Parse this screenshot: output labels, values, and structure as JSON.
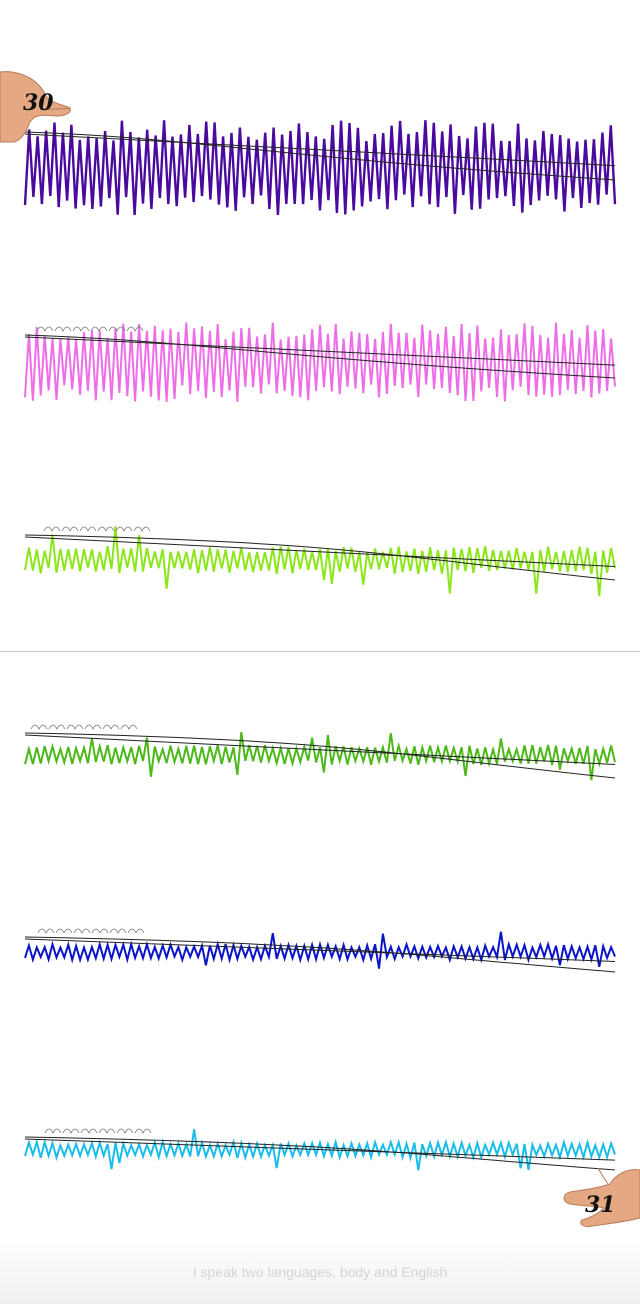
{
  "page": {
    "left_number": "30",
    "right_number": "31"
  },
  "caption": "I speak two languages, body and English",
  "strips": [
    {
      "name": "strip-purple",
      "color": "#4b0a9e",
      "amplitude": 1.0,
      "trend": "flat"
    },
    {
      "name": "strip-pink",
      "color": "#ee6ee8",
      "amplitude": 0.7,
      "trend": "decline"
    },
    {
      "name": "strip-lime",
      "color": "#8be61a",
      "amplitude": 0.45,
      "trend": "decline"
    },
    {
      "name": "strip-green",
      "color": "#4cb81a",
      "amplitude": 0.35,
      "trend": "drop"
    },
    {
      "name": "strip-blue",
      "color": "#0a14c8",
      "amplitude": 0.3,
      "trend": "drop"
    },
    {
      "name": "strip-light-blue",
      "color": "#19bde8",
      "amplitude": 0.28,
      "trend": "drop"
    }
  ],
  "icons": [
    "thumb-hand-icon",
    "pointing-hand-icon"
  ]
}
